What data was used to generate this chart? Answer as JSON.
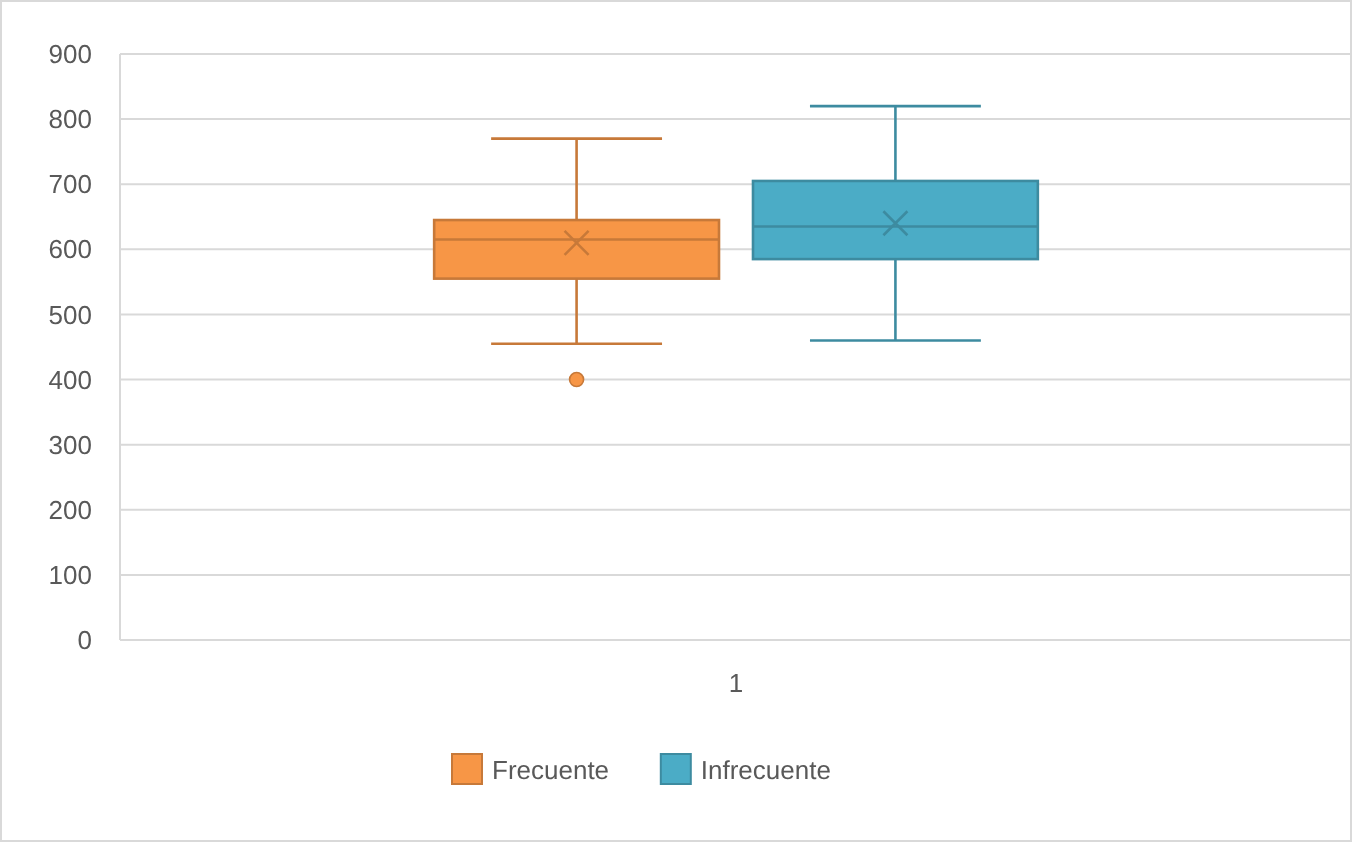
{
  "chart_data": {
    "type": "box",
    "categories": [
      "1"
    ],
    "series": [
      {
        "name": "Frecuente",
        "color": "#f79646",
        "boxes": [
          {
            "low": 455,
            "q1": 555,
            "median": 615,
            "q3": 645,
            "high": 770,
            "mean": 610,
            "outliers": [
              400
            ]
          }
        ]
      },
      {
        "name": "Infrecuente",
        "color": "#4bacc6",
        "boxes": [
          {
            "low": 460,
            "q1": 585,
            "median": 635,
            "q3": 705,
            "high": 820,
            "mean": 640
          }
        ]
      }
    ],
    "ylim": [
      0,
      900
    ],
    "yticks": [
      0,
      100,
      200,
      300,
      400,
      500,
      600,
      700,
      800,
      900
    ],
    "grid": "y",
    "legend": "bottom"
  }
}
